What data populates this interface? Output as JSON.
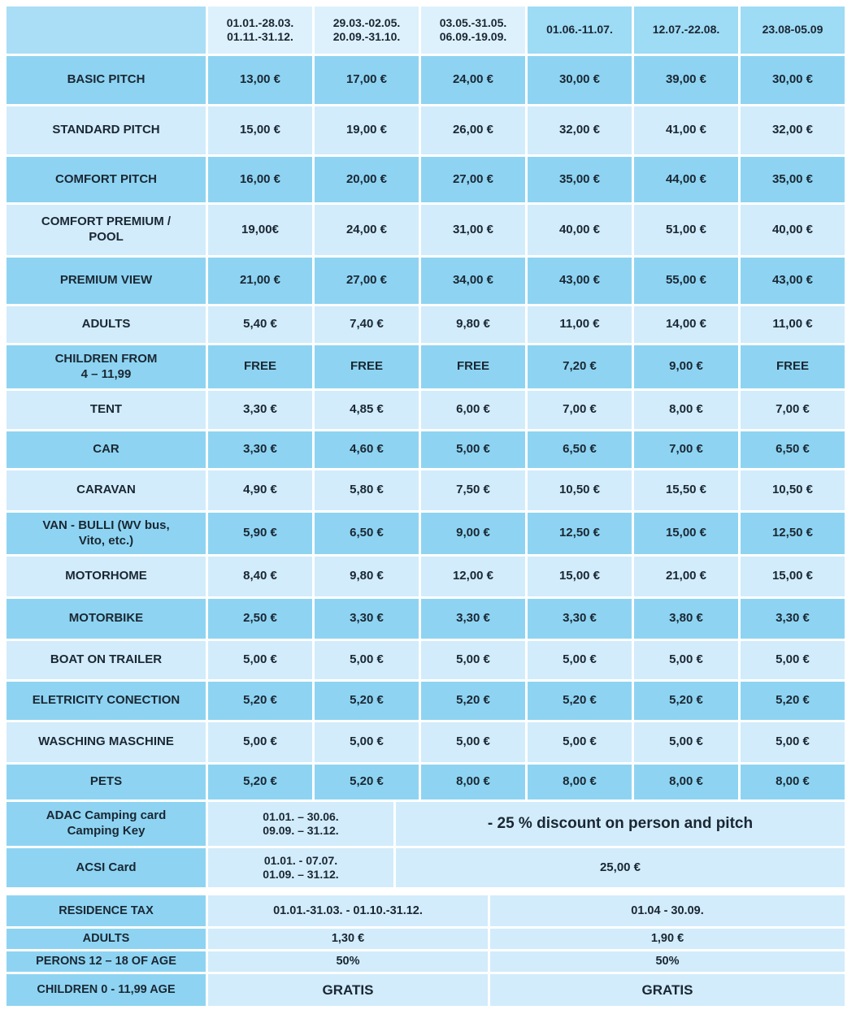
{
  "colors": {
    "row_medium": "#8ed4f2",
    "row_light": "#d2ecfb",
    "header_light": "#ddf1fc",
    "header_medium": "#9edbf5",
    "corner": "#a9def6",
    "text": "#1a2733",
    "background": "#ffffff"
  },
  "table": {
    "header": {
      "corner": "",
      "columns": [
        "01.01.-28.03.\n01.11.-31.12.",
        "29.03.-02.05.\n20.09.-31.10.",
        "03.05.-31.05.\n06.09.-19.09.",
        "01.06.-11.07.",
        "12.07.-22.08.",
        "23.08-05.09"
      ]
    },
    "rows": [
      {
        "label": "BASIC PITCH",
        "values": [
          "13,00 €",
          "17,00 €",
          "24,00 €",
          "30,00 €",
          "39,00 €",
          "30,00 €"
        ]
      },
      {
        "label": "STANDARD PITCH",
        "values": [
          "15,00 €",
          "19,00 €",
          "26,00 €",
          "32,00 €",
          "41,00 €",
          "32,00 €"
        ]
      },
      {
        "label": "COMFORT PITCH",
        "values": [
          "16,00 €",
          "20,00 €",
          "27,00 €",
          "35,00 €",
          "44,00 €",
          "35,00 €"
        ]
      },
      {
        "label": "COMFORT PREMIUM /\nPOOL",
        "values": [
          "19,00€",
          "24,00 €",
          "31,00 €",
          "40,00 €",
          "51,00 €",
          "40,00 €"
        ]
      },
      {
        "label": "PREMIUM VIEW",
        "values": [
          "21,00 €",
          "27,00 €",
          "34,00 €",
          "43,00 €",
          "55,00 €",
          "43,00 €"
        ]
      },
      {
        "label": "ADULTS",
        "values": [
          "5,40 €",
          "7,40 €",
          "9,80 €",
          "11,00 €",
          "14,00 €",
          "11,00 €"
        ]
      },
      {
        "label": "CHILDREN FROM\n4 – 11,99",
        "values": [
          "FREE",
          "FREE",
          "FREE",
          "7,20 €",
          "9,00 €",
          "FREE"
        ]
      },
      {
        "label": "TENT",
        "values": [
          "3,30 €",
          "4,85 €",
          "6,00 €",
          "7,00 €",
          "8,00 €",
          "7,00 €"
        ]
      },
      {
        "label": "CAR",
        "values": [
          "3,30 €",
          "4,60 €",
          "5,00 €",
          "6,50 €",
          "7,00 €",
          "6,50 €"
        ]
      },
      {
        "label": "CARAVAN",
        "values": [
          "4,90 €",
          "5,80 €",
          "7,50 €",
          "10,50 €",
          "15,50 €",
          "10,50 €"
        ]
      },
      {
        "label": "VAN - BULLI (WV bus,\nVito, etc.)",
        "values": [
          "5,90 €",
          "6,50 €",
          "9,00 €",
          "12,50 €",
          "15,00 €",
          "12,50 €"
        ]
      },
      {
        "label": "MOTORHOME",
        "values": [
          "8,40 €",
          "9,80 €",
          "12,00 €",
          "15,00 €",
          "21,00 €",
          "15,00 €"
        ]
      },
      {
        "label": "MOTORBIKE",
        "values": [
          "2,50 €",
          "3,30 €",
          "3,30 €",
          "3,30 €",
          "3,80 €",
          "3,30 €"
        ]
      },
      {
        "label": "BOAT ON TRAILER",
        "values": [
          "5,00 €",
          "5,00 €",
          "5,00 €",
          "5,00 €",
          "5,00 €",
          "5,00 €"
        ]
      },
      {
        "label": "ELETRICITY CONECTION",
        "values": [
          "5,20 €",
          "5,20 €",
          "5,20 €",
          "5,20 €",
          "5,20 €",
          "5,20 €"
        ]
      },
      {
        "label": "WASCHING MASCHINE",
        "values": [
          "5,00 €",
          "5,00 €",
          "5,00 €",
          "5,00 €",
          "5,00 €",
          "5,00 €"
        ]
      },
      {
        "label": "PETS",
        "values": [
          "5,20 €",
          "5,20 €",
          "8,00 €",
          "8,00 €",
          "8,00 €",
          "8,00 €"
        ]
      }
    ],
    "card_rows": [
      {
        "label": "ADAC Camping card\nCamping Key",
        "dates": "01.01. – 30.06.\n09.09. – 31.12.",
        "value": "- 25 % discount on person and pitch"
      },
      {
        "label": "ACSI Card",
        "dates": "01.01. - 07.07.\n01.09. – 31.12.",
        "value": "25,00 €"
      }
    ],
    "residence": {
      "rows": [
        {
          "label": "RESIDENCE TAX",
          "left": "01.01.-31.03. - 01.10.-31.12.",
          "right": "01.04 - 30.09."
        },
        {
          "label": "ADULTS",
          "left": "1,30 €",
          "right": "1,90 €"
        },
        {
          "label": "PERONS 12 – 18 OF AGE",
          "left": "50%",
          "right": "50%"
        },
        {
          "label": "CHILDREN 0 - 11,99 AGE",
          "left": "GRATIS",
          "right": "GRATIS"
        }
      ]
    }
  }
}
